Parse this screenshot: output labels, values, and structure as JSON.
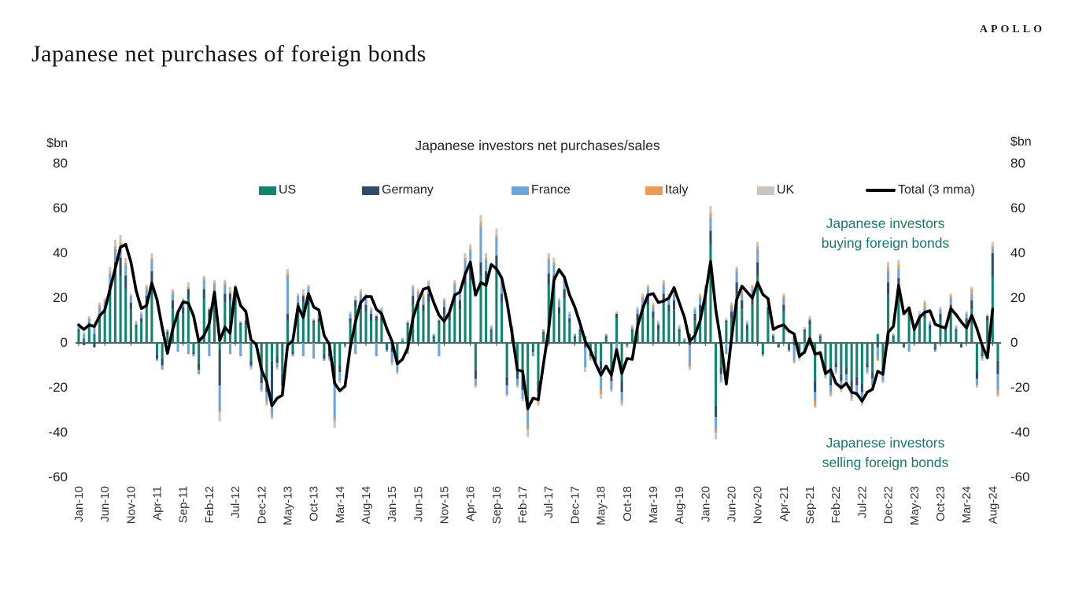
{
  "header": {
    "brand": "APOLLO",
    "title": "Japanese net purchases of foreign bonds"
  },
  "chart": {
    "title": "Japanese investors net purchases/sales",
    "y_unit": "$bn",
    "y_ticks": [
      80,
      60,
      40,
      20,
      0,
      -20,
      -40,
      -60
    ],
    "annotations": {
      "buying_line1": "Japanese investors",
      "buying_line2": "buying foreign bonds",
      "selling_line1": "Japanese investors",
      "selling_line2": "selling foreign bonds",
      "color": "#17786e"
    }
  },
  "chart_data": {
    "type": "bar",
    "stacked": true,
    "title": "Japanese investors net purchases/sales",
    "ylabel": "$bn",
    "ylim": [
      -60,
      80
    ],
    "x_start": "Jan-10",
    "x_end": "Sep-24",
    "x_tick_every": 5,
    "x_tick_labels": [
      "Jan-10",
      "Jun-10",
      "Nov-10",
      "Apr-11",
      "Sep-11",
      "Feb-12",
      "Jul-12",
      "Dec-12",
      "May-13",
      "Oct-13",
      "Mar-14",
      "Aug-14",
      "Jan-15",
      "Jun-15",
      "Nov-15",
      "Apr-16",
      "Sep-16",
      "Feb-17",
      "Jul-17",
      "Dec-17",
      "May-18",
      "Oct-18",
      "Mar-19",
      "Aug-19",
      "Jan-20",
      "Jun-20",
      "Nov-20",
      "Apr-21",
      "Sep-21",
      "Feb-22",
      "Jul-22",
      "Dec-22",
      "May-23",
      "Oct-23",
      "Mar-24",
      "Aug-24"
    ],
    "series": [
      {
        "name": "US",
        "color": "#0f8570"
      },
      {
        "name": "Germany",
        "color": "#2e4d6b"
      },
      {
        "name": "France",
        "color": "#6fa4d8"
      },
      {
        "name": "Italy",
        "color": "#ec9a55"
      },
      {
        "name": "UK",
        "color": "#cbc5bc"
      }
    ],
    "line_series": {
      "name": "Total (3 mma)",
      "color": "#000000",
      "definition": "3-month trailing moving average of monthly stacked totals"
    },
    "months_order": [
      "US",
      "Germany",
      "France",
      "Italy",
      "UK"
    ],
    "months": [
      [
        5,
        1,
        1,
        0,
        1
      ],
      [
        2,
        -1,
        2,
        0,
        1
      ],
      [
        7,
        2,
        2,
        0,
        1
      ],
      [
        4,
        -2,
        3,
        0,
        1
      ],
      [
        11,
        2,
        3,
        1,
        1
      ],
      [
        13,
        3,
        2,
        1,
        1
      ],
      [
        21,
        5,
        5,
        1,
        2
      ],
      [
        29,
        7,
        6,
        1,
        3
      ],
      [
        30,
        8,
        6,
        1,
        3
      ],
      [
        24,
        6,
        5,
        1,
        2
      ],
      [
        15,
        3,
        3,
        0,
        1
      ],
      [
        7,
        1,
        1,
        0,
        1
      ],
      [
        9,
        2,
        2,
        0,
        1
      ],
      [
        17,
        4,
        3,
        1,
        1
      ],
      [
        27,
        5,
        5,
        1,
        2
      ],
      [
        -5,
        -2,
        -1,
        0,
        0
      ],
      [
        -7,
        -3,
        -2,
        0,
        0
      ],
      [
        4,
        1,
        1,
        0,
        0
      ],
      [
        15,
        4,
        3,
        1,
        1
      ],
      [
        12,
        2,
        -4,
        0,
        1
      ],
      [
        13,
        3,
        3,
        0,
        1
      ],
      [
        20,
        4,
        -5,
        1,
        2
      ],
      [
        -4,
        -1,
        -1,
        0,
        0
      ],
      [
        -9,
        -3,
        -2,
        0,
        0
      ],
      [
        20,
        4,
        4,
        1,
        1
      ],
      [
        12,
        3,
        -6,
        0,
        1
      ],
      [
        18,
        4,
        4,
        1,
        1
      ],
      [
        -3,
        -16,
        -11,
        -1,
        -4
      ],
      [
        18,
        4,
        4,
        1,
        1
      ],
      [
        19,
        3,
        -5,
        1,
        2
      ],
      [
        17,
        4,
        3,
        1,
        1
      ],
      [
        8,
        1,
        -6,
        0,
        1
      ],
      [
        8,
        2,
        1,
        0,
        1
      ],
      [
        -8,
        -2,
        -1,
        0,
        -1
      ],
      [
        -1,
        -1,
        0,
        0,
        0
      ],
      [
        -14,
        -4,
        -3,
        0,
        -1
      ],
      [
        -16,
        -6,
        -4,
        -1,
        -1
      ],
      [
        -8,
        -18,
        -6,
        -1,
        -1
      ],
      [
        -6,
        -3,
        -2,
        0,
        -1
      ],
      [
        -14,
        -5,
        -4,
        0,
        -1
      ],
      [
        10,
        3,
        17,
        1,
        2
      ],
      [
        -4,
        -1,
        -1,
        0,
        0
      ],
      [
        14,
        4,
        3,
        0,
        1
      ],
      [
        18,
        3,
        -6,
        1,
        2
      ],
      [
        17,
        4,
        4,
        0,
        1
      ],
      [
        9,
        1,
        -7,
        0,
        1
      ],
      [
        9,
        2,
        2,
        0,
        1
      ],
      [
        -5,
        -2,
        -1,
        0,
        0
      ],
      [
        -5,
        -1,
        -1,
        0,
        -1
      ],
      [
        -10,
        -6,
        -18,
        -1,
        -3
      ],
      [
        -10,
        -3,
        -4,
        0,
        -1
      ],
      [
        -1,
        0,
        -1,
        0,
        0
      ],
      [
        9,
        2,
        2,
        0,
        1
      ],
      [
        16,
        3,
        -5,
        0,
        2
      ],
      [
        15,
        4,
        3,
        1,
        1
      ],
      [
        14,
        3,
        3,
        1,
        1
      ],
      [
        10,
        3,
        2,
        0,
        1
      ],
      [
        10,
        2,
        -6,
        0,
        1
      ],
      [
        10,
        3,
        2,
        0,
        1
      ],
      [
        -2,
        -1,
        -1,
        0,
        0
      ],
      [
        -2,
        -2,
        -5,
        0,
        -1
      ],
      [
        -6,
        -3,
        -4,
        0,
        -1
      ],
      [
        1,
        0,
        1,
        0,
        0
      ],
      [
        8,
        1,
        -5,
        0,
        1
      ],
      [
        17,
        4,
        3,
        1,
        1
      ],
      [
        15,
        4,
        3,
        1,
        1
      ],
      [
        14,
        3,
        3,
        1,
        1
      ],
      [
        18,
        4,
        4,
        1,
        1
      ],
      [
        2,
        1,
        1,
        0,
        0
      ],
      [
        9,
        1,
        -6,
        0,
        1
      ],
      [
        13,
        3,
        3,
        0,
        1
      ],
      [
        10,
        3,
        2,
        0,
        1
      ],
      [
        18,
        4,
        4,
        1,
        1
      ],
      [
        15,
        4,
        3,
        1,
        1
      ],
      [
        26,
        6,
        5,
        1,
        2
      ],
      [
        28,
        6,
        7,
        1,
        2
      ],
      [
        -12,
        -4,
        -3,
        0,
        -1
      ],
      [
        30,
        6,
        16,
        2,
        3
      ],
      [
        26,
        6,
        5,
        1,
        2
      ],
      [
        5,
        1,
        1,
        0,
        1
      ],
      [
        32,
        7,
        8,
        1,
        3
      ],
      [
        18,
        4,
        4,
        1,
        1
      ],
      [
        -15,
        -4,
        -4,
        0,
        -1
      ],
      [
        5,
        1,
        1,
        0,
        1
      ],
      [
        -12,
        -4,
        -3,
        0,
        -1
      ],
      [
        -16,
        -5,
        -4,
        0,
        -1
      ],
      [
        -24,
        -6,
        -8,
        -1,
        -3
      ],
      [
        -3,
        -1,
        -2,
        0,
        0
      ],
      [
        -17,
        -5,
        -4,
        -1,
        -1
      ],
      [
        4,
        1,
        1,
        0,
        0
      ],
      [
        26,
        5,
        6,
        1,
        2
      ],
      [
        25,
        5,
        5,
        1,
        2
      ],
      [
        13,
        3,
        3,
        0,
        1
      ],
      [
        20,
        4,
        4,
        1,
        1
      ],
      [
        9,
        2,
        2,
        0,
        1
      ],
      [
        2,
        1,
        1,
        0,
        0
      ],
      [
        5,
        1,
        1,
        0,
        1
      ],
      [
        3,
        -2,
        -9,
        0,
        -2
      ],
      [
        -5,
        -1,
        -1,
        0,
        -1
      ],
      [
        -6,
        -2,
        -1,
        0,
        -1
      ],
      [
        -8,
        -4,
        -9,
        -2,
        -2
      ],
      [
        2,
        1,
        1,
        0,
        0
      ],
      [
        -13,
        -4,
        -4,
        0,
        -1
      ],
      [
        11,
        2,
        -5,
        0,
        1
      ],
      [
        -17,
        -5,
        -4,
        -1,
        -1
      ],
      [
        -1,
        0,
        -1,
        0,
        0
      ],
      [
        5,
        1,
        1,
        0,
        1
      ],
      [
        10,
        3,
        2,
        0,
        1
      ],
      [
        14,
        3,
        3,
        1,
        1
      ],
      [
        17,
        4,
        3,
        1,
        1
      ],
      [
        11,
        3,
        2,
        1,
        1
      ],
      [
        6,
        2,
        1,
        0,
        1
      ],
      [
        18,
        4,
        4,
        1,
        1
      ],
      [
        14,
        3,
        3,
        1,
        1
      ],
      [
        15,
        4,
        3,
        1,
        1
      ],
      [
        5,
        1,
        1,
        0,
        1
      ],
      [
        1,
        0,
        1,
        0,
        0
      ],
      [
        4,
        -1,
        -9,
        -1,
        -1
      ],
      [
        10,
        3,
        2,
        0,
        1
      ],
      [
        14,
        3,
        3,
        1,
        1
      ],
      [
        17,
        4,
        3,
        1,
        1
      ],
      [
        44,
        6,
        6,
        2,
        3
      ],
      [
        -28,
        -5,
        -6,
        -1,
        -3
      ],
      [
        -11,
        -3,
        -3,
        0,
        -1
      ],
      [
        9,
        1,
        -5,
        0,
        1
      ],
      [
        11,
        3,
        2,
        1,
        1
      ],
      [
        22,
        5,
        5,
        1,
        1
      ],
      [
        15,
        4,
        3,
        1,
        1
      ],
      [
        6,
        2,
        1,
        0,
        1
      ],
      [
        17,
        4,
        3,
        1,
        1
      ],
      [
        30,
        6,
        6,
        1,
        2
      ],
      [
        -4,
        -1,
        -1,
        0,
        0
      ],
      [
        13,
        3,
        3,
        0,
        1
      ],
      [
        2,
        1,
        1,
        0,
        0
      ],
      [
        -1,
        -1,
        0,
        0,
        0
      ],
      [
        14,
        3,
        3,
        1,
        1
      ],
      [
        -2,
        -1,
        -1,
        0,
        0
      ],
      [
        3,
        -1,
        -7,
        -1,
        0
      ],
      [
        -5,
        -1,
        -1,
        0,
        -1
      ],
      [
        5,
        1,
        -5,
        0,
        1
      ],
      [
        8,
        2,
        1,
        0,
        1
      ],
      [
        -17,
        -5,
        -4,
        -2,
        -1
      ],
      [
        2,
        1,
        1,
        0,
        0
      ],
      [
        -10,
        -3,
        -2,
        0,
        -1
      ],
      [
        -16,
        -3,
        -3,
        -1,
        -1
      ],
      [
        -9,
        -2,
        -2,
        0,
        -1
      ],
      [
        -14,
        -3,
        -3,
        -1,
        -1
      ],
      [
        -11,
        -3,
        -3,
        0,
        -1
      ],
      [
        -17,
        -4,
        -3,
        -1,
        -1
      ],
      [
        -15,
        -4,
        -3,
        -1,
        -1
      ],
      [
        -18,
        -4,
        -4,
        -1,
        -1
      ],
      [
        -9,
        -2,
        -2,
        0,
        -1
      ],
      [
        -13,
        -3,
        -3,
        0,
        -1
      ],
      [
        4,
        -2,
        -5,
        -1,
        0
      ],
      [
        -11,
        -3,
        -3,
        0,
        -1
      ],
      [
        22,
        5,
        5,
        2,
        2
      ],
      [
        2,
        1,
        1,
        0,
        0
      ],
      [
        24,
        5,
        4,
        2,
        2
      ],
      [
        -1,
        -1,
        0,
        0,
        0
      ],
      [
        12,
        3,
        -4,
        0,
        1
      ],
      [
        5,
        1,
        1,
        0,
        1
      ],
      [
        9,
        2,
        2,
        0,
        1
      ],
      [
        11,
        3,
        2,
        2,
        1
      ],
      [
        6,
        2,
        1,
        0,
        1
      ],
      [
        -2,
        -1,
        -1,
        0,
        0
      ],
      [
        10,
        3,
        2,
        0,
        1
      ],
      [
        5,
        1,
        1,
        0,
        1
      ],
      [
        14,
        3,
        3,
        1,
        1
      ],
      [
        5,
        1,
        1,
        0,
        1
      ],
      [
        -1,
        -1,
        0,
        0,
        0
      ],
      [
        9,
        2,
        2,
        0,
        1
      ],
      [
        15,
        4,
        3,
        2,
        1
      ],
      [
        -13,
        -3,
        -3,
        0,
        -1
      ],
      [
        -5,
        -1,
        -1,
        0,
        -1
      ],
      [
        10,
        2,
        -5,
        0,
        1
      ],
      [
        30,
        10,
        2,
        1,
        2
      ],
      [
        -8,
        -6,
        -7,
        -2,
        -1
      ]
    ]
  }
}
